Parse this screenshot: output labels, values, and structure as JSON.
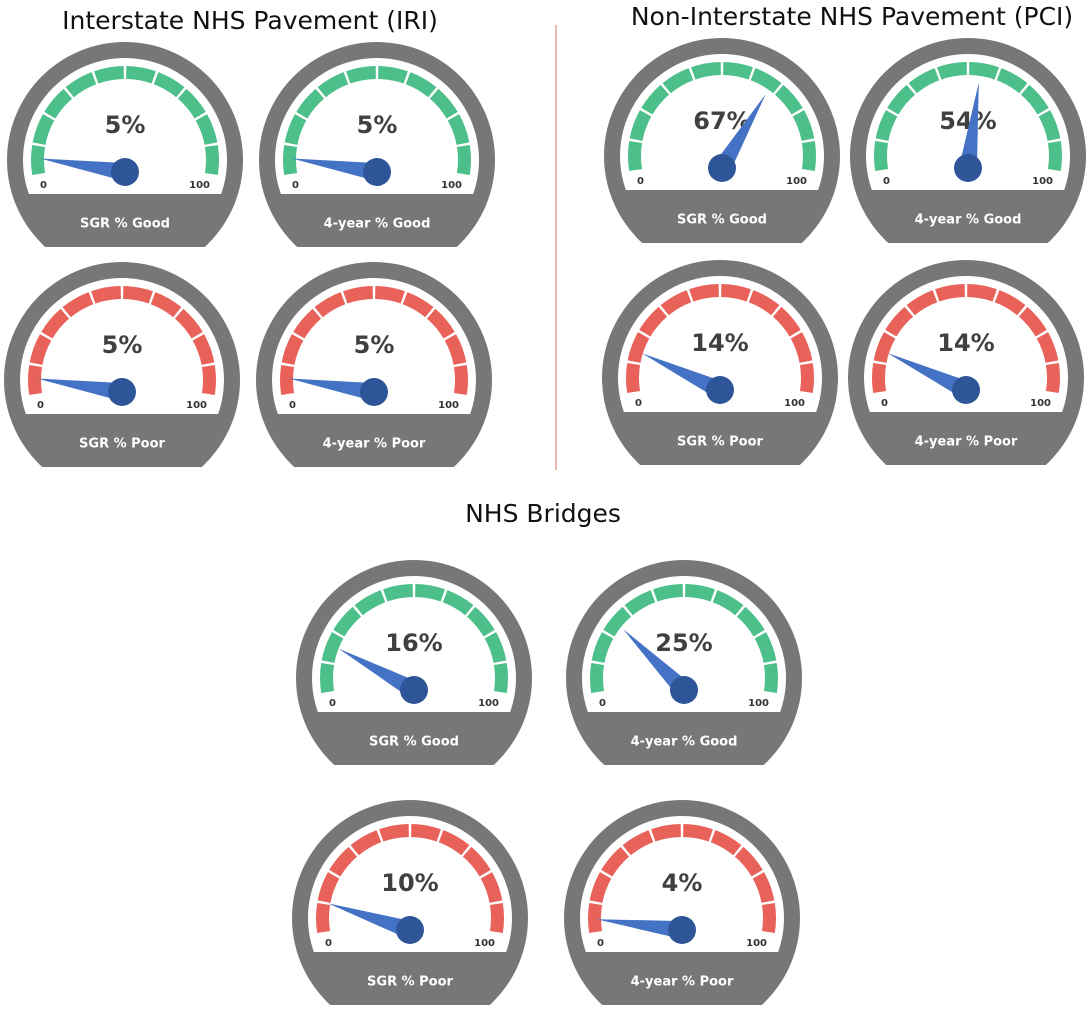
{
  "headings": [
    "Interstate NHS Pavement (IRI)",
    "Non-Interstate NHS Pavement (PCI)",
    "NHS Bridges"
  ],
  "chart_data": [
    {
      "type": "gauge",
      "label": "SGR % Good",
      "values": [
        5
      ],
      "value_labels": [
        "5%"
      ],
      "ylim": [
        0,
        100
      ],
      "yticks": [
        0,
        100
      ],
      "color": "#4dbf8a",
      "needle_color": "#4472c4"
    },
    {
      "type": "gauge",
      "label": "4-year % Good",
      "values": [
        5
      ],
      "value_labels": [
        "5%"
      ],
      "ylim": [
        0,
        100
      ],
      "yticks": [
        0,
        100
      ],
      "color": "#4dbf8a",
      "needle_color": "#4472c4"
    },
    {
      "type": "gauge",
      "label": "SGR % Good",
      "values": [
        67
      ],
      "value_labels": [
        "67%"
      ],
      "ylim": [
        0,
        100
      ],
      "yticks": [
        0,
        100
      ],
      "color": "#4dbf8a",
      "needle_color": "#4472c4"
    },
    {
      "type": "gauge",
      "label": "4-year % Good",
      "values": [
        54
      ],
      "value_labels": [
        "54%"
      ],
      "ylim": [
        0,
        100
      ],
      "yticks": [
        0,
        100
      ],
      "color": "#4dbf8a",
      "needle_color": "#4472c4"
    },
    {
      "type": "gauge",
      "label": "SGR % Poor",
      "values": [
        5
      ],
      "value_labels": [
        "5%"
      ],
      "ylim": [
        0,
        100
      ],
      "yticks": [
        0,
        100
      ],
      "color": "#e8625a",
      "needle_color": "#4472c4"
    },
    {
      "type": "gauge",
      "label": "4-year % Poor",
      "values": [
        5
      ],
      "value_labels": [
        "5%"
      ],
      "ylim": [
        0,
        100
      ],
      "yticks": [
        0,
        100
      ],
      "color": "#e8625a",
      "needle_color": "#4472c4"
    },
    {
      "type": "gauge",
      "label": "SGR % Poor",
      "values": [
        14
      ],
      "value_labels": [
        "14%"
      ],
      "ylim": [
        0,
        100
      ],
      "yticks": [
        0,
        100
      ],
      "color": "#e8625a",
      "needle_color": "#4472c4"
    },
    {
      "type": "gauge",
      "label": "4-year % Poor",
      "values": [
        14
      ],
      "value_labels": [
        "14%"
      ],
      "ylim": [
        0,
        100
      ],
      "yticks": [
        0,
        100
      ],
      "color": "#e8625a",
      "needle_color": "#4472c4"
    },
    {
      "type": "gauge",
      "label": "SGR % Good",
      "values": [
        16
      ],
      "value_labels": [
        "16%"
      ],
      "ylim": [
        0,
        100
      ],
      "yticks": [
        0,
        100
      ],
      "color": "#4dbf8a",
      "needle_color": "#4472c4"
    },
    {
      "type": "gauge",
      "label": "4-year % Good",
      "values": [
        25
      ],
      "value_labels": [
        "25%"
      ],
      "ylim": [
        0,
        100
      ],
      "yticks": [
        0,
        100
      ],
      "color": "#4dbf8a",
      "needle_color": "#4472c4"
    },
    {
      "type": "gauge",
      "label": "SGR % Poor",
      "values": [
        10
      ],
      "value_labels": [
        "10%"
      ],
      "ylim": [
        0,
        100
      ],
      "yticks": [
        0,
        100
      ],
      "color": "#e8625a",
      "needle_color": "#4472c4"
    },
    {
      "type": "gauge",
      "label": "4-year % Poor",
      "values": [
        4
      ],
      "value_labels": [
        "4%"
      ],
      "ylim": [
        0,
        100
      ],
      "yticks": [
        0,
        100
      ],
      "color": "#e8625a",
      "needle_color": "#4472c4"
    }
  ]
}
